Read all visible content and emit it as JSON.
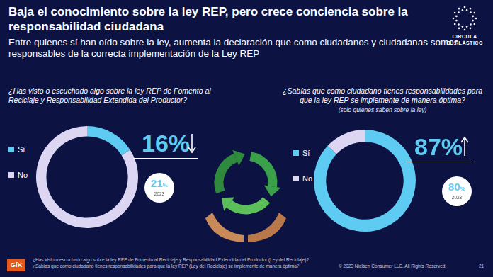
{
  "title": "Baja el conocimiento sobre la ley REP, pero crece conciencia sobre la responsabilidad ciudadana",
  "subtitle": "Entre quienes sí han oído sobre la ley, aumenta la declaración que como ciudadanos y ciudadanas somos responsables de la correcta implementación de la Ley REP",
  "logo": [
    "CIRCULA",
    "EL PLÁSTICO"
  ],
  "chart_data": [
    {
      "type": "doughnut",
      "title": "¿Has visto o escuchado algo sobre la ley REP de Fomento al Reciclaje y Responsabilidad Extendida del Productor?",
      "categories": [
        "Sí",
        "No"
      ],
      "values": [
        16,
        84
      ],
      "colors": [
        "#5ecbf3",
        "#dcd6f2"
      ],
      "legend": "left",
      "highlight": {
        "value": 16,
        "label": "16%"
      },
      "previous": {
        "value": 21,
        "label": "21%",
        "year": "2023"
      }
    },
    {
      "type": "doughnut",
      "title": "¿Sabías que como ciudadano tienes responsabilidades para que la ley REP se implemente de manera óptima?",
      "note": "(solo quienes saben sobre la ley)",
      "categories": [
        "Sí",
        "No"
      ],
      "values": [
        87,
        13
      ],
      "colors": [
        "#5ecbf3",
        "#dcd6f2"
      ],
      "legend": "left",
      "highlight": {
        "value": 87,
        "label": "87%"
      },
      "previous": {
        "value": 80,
        "label": "80%",
        "year": "2023"
      }
    }
  ],
  "footer": {
    "brand": "GfK",
    "notes": [
      "¿Has visto o escuchado algo sobre la ley REP de Fomento al Reciclaje y Responsabilidad Extendida del Productor (Ley del Reciclaje)?",
      "¿Sabías que como ciudadano tienes responsabilidades para que la ley REP (Ley del Reciclaje) se implemente de manera óptima?"
    ],
    "copyright": "© 2023 Nielsen Consumer LLC. All Rights Reserved.",
    "page": "21"
  }
}
